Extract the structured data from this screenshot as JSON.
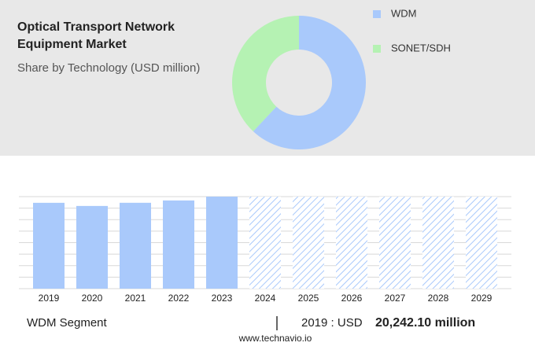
{
  "chart_data": [
    {
      "type": "donut",
      "title": "Optical Transport Network Equipment Market",
      "subtitle": "Share by Technology (USD million)",
      "categories": [
        "WDM",
        "SONET/SDH"
      ],
      "values": [
        62,
        38
      ],
      "colors": [
        "#a9c9fb",
        "#b5f2b3"
      ]
    },
    {
      "type": "bar",
      "categories": [
        "2019",
        "2020",
        "2021",
        "2022",
        "2023",
        "2024",
        "2025",
        "2026",
        "2027",
        "2028",
        "2029"
      ],
      "values": [
        20242.1,
        19500,
        20250,
        20800,
        21700,
        null,
        null,
        null,
        null,
        null,
        null
      ],
      "color": "#a9c9fb",
      "ylim": [
        0,
        21700
      ]
    }
  ],
  "footer": {
    "segment": "WDM Segment",
    "year_label": "2019 : USD",
    "value_label": "20,242.10 million",
    "source": "www.technavio.io"
  }
}
